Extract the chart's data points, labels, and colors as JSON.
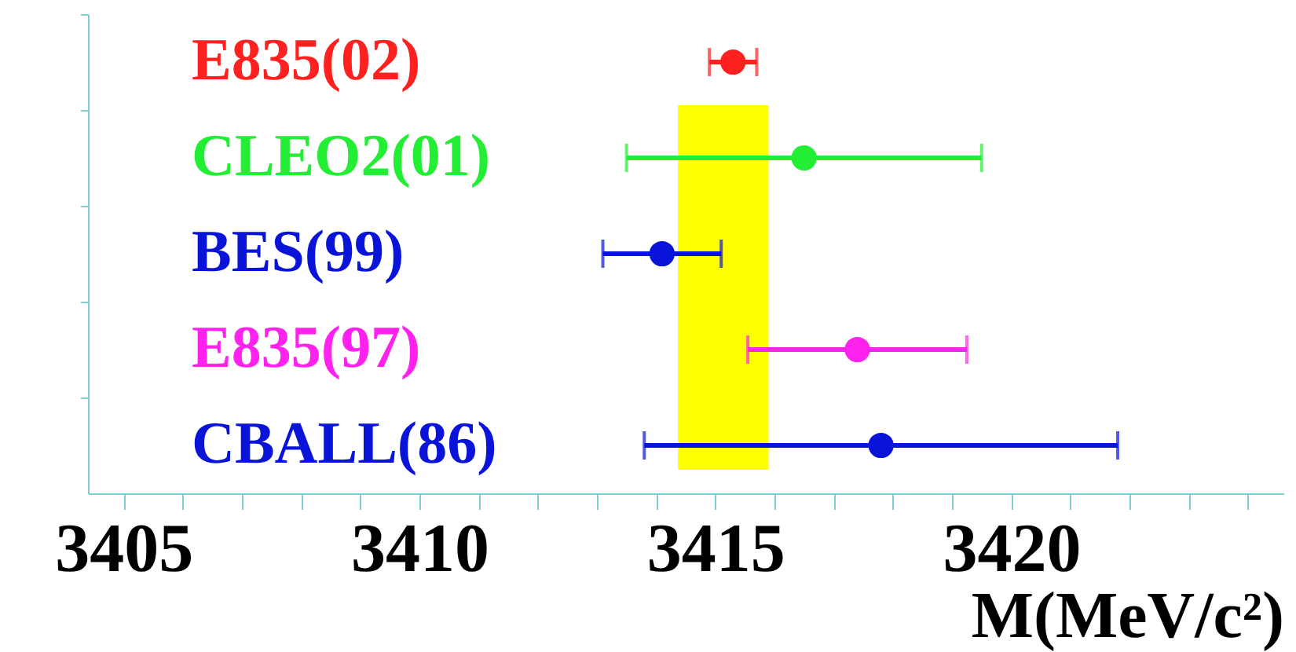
{
  "chart_data": {
    "type": "scatter",
    "orientation": "horizontal",
    "categories": [
      "E835(02)",
      "CLEO2(01)",
      "BES(99)",
      "E835(97)",
      "CBALL(86)"
    ],
    "values": [
      3415.3,
      3416.5,
      3414.1,
      3417.4,
      3417.8
    ],
    "errors": [
      0.4,
      3.0,
      1.0,
      1.85,
      4.0
    ],
    "colors": [
      "#ff2020",
      "#22ee33",
      "#0a14d8",
      "#ff22ee",
      "#0a14d8"
    ],
    "xlabel": "M(MeV/c²)",
    "xlim": [
      3404.4,
      3424.6
    ],
    "xticks": [
      {
        "value": 3405,
        "label": "3405"
      },
      {
        "value": 3406,
        "label": null
      },
      {
        "value": 3407,
        "label": null
      },
      {
        "value": 3408,
        "label": null
      },
      {
        "value": 3409,
        "label": null
      },
      {
        "value": 3410,
        "label": "3410"
      },
      {
        "value": 3411,
        "label": null
      },
      {
        "value": 3412,
        "label": null
      },
      {
        "value": 3413,
        "label": null
      },
      {
        "value": 3414,
        "label": null
      },
      {
        "value": 3415,
        "label": "3415"
      },
      {
        "value": 3416,
        "label": null
      },
      {
        "value": 3417,
        "label": null
      },
      {
        "value": 3418,
        "label": null
      },
      {
        "value": 3419,
        "label": null
      },
      {
        "value": 3420,
        "label": "3420"
      },
      {
        "value": 3421,
        "label": null
      },
      {
        "value": 3422,
        "label": null
      },
      {
        "value": 3423,
        "label": null
      },
      {
        "value": 3424,
        "label": null
      }
    ],
    "bands": [
      {
        "axis": "x",
        "from": 3414.37,
        "to": 3415.9,
        "color": "#ffff00"
      }
    ],
    "marker": "circle",
    "tick_labels": "x",
    "grid": false,
    "legend": false
  }
}
